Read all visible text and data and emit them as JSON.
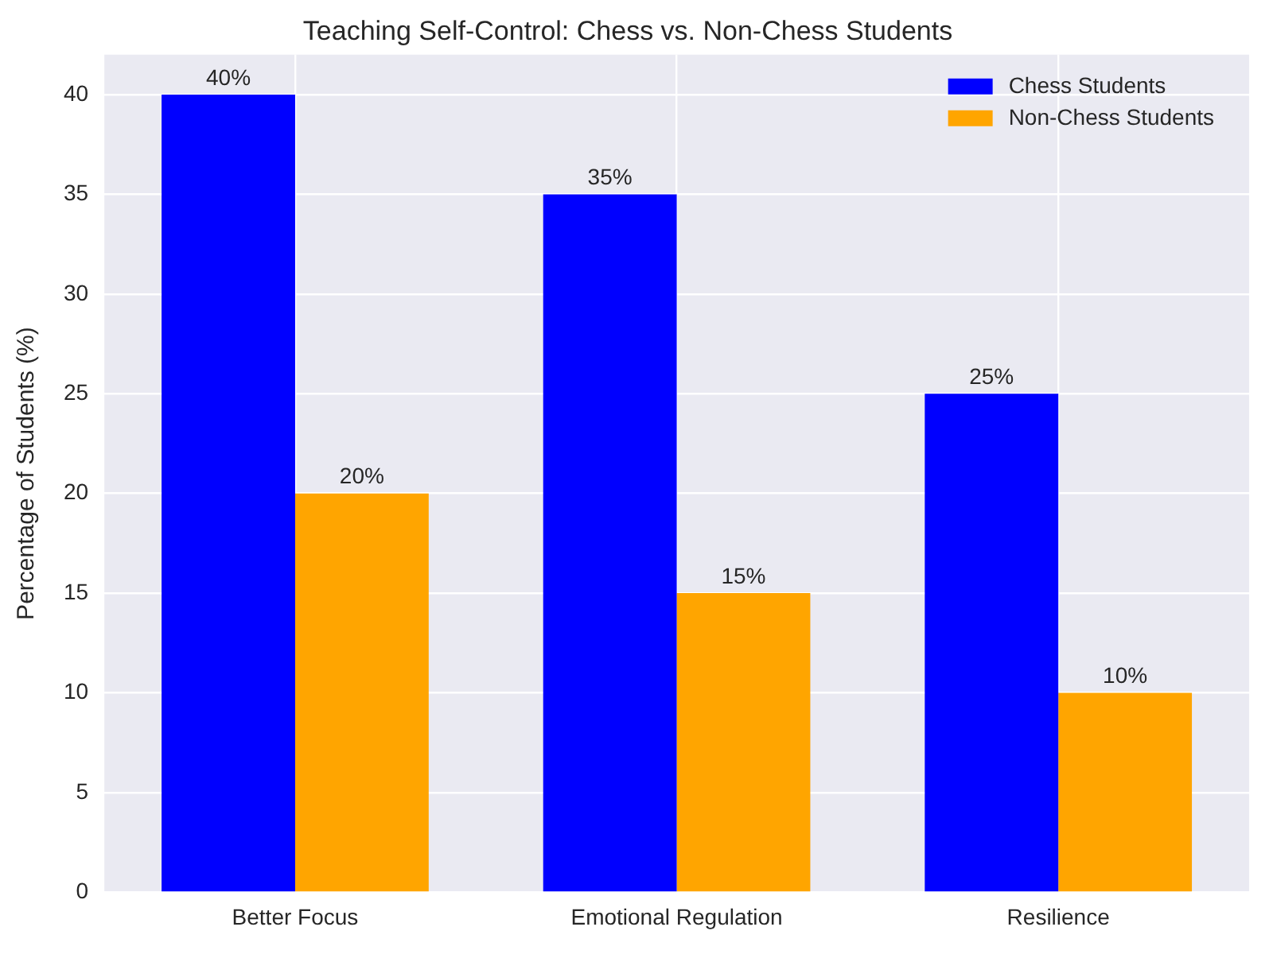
{
  "chart_data": {
    "type": "bar",
    "title": "Teaching Self-Control: Chess vs. Non-Chess Students",
    "ylabel": "Percentage of Students (%)",
    "categories": [
      "Better Focus",
      "Emotional Regulation",
      "Resilience"
    ],
    "series": [
      {
        "name": "Chess Students",
        "color": "#0000ff",
        "values": [
          40,
          35,
          25
        ],
        "value_labels": [
          "40%",
          "35%",
          "25%"
        ]
      },
      {
        "name": "Non-Chess Students",
        "color": "#ffa500",
        "values": [
          20,
          15,
          10
        ],
        "value_labels": [
          "20%",
          "15%",
          "10%"
        ]
      }
    ],
    "ylim": [
      0,
      42
    ],
    "yticks": [
      0,
      5,
      10,
      15,
      20,
      25,
      30,
      35,
      40
    ],
    "grid": true,
    "legend": "top right"
  }
}
